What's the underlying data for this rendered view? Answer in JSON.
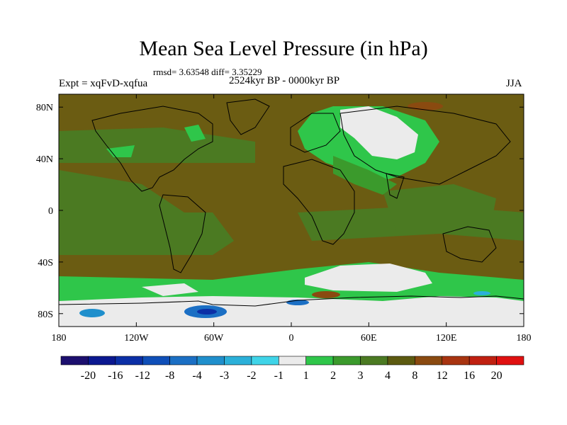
{
  "title": "Mean Sea Level Pressure (in hPa)",
  "stats": "rmsd= 3.63548 diff= 3.35229",
  "left_label": "Expt = xqFvD-xqfua",
  "center_label": "2524kyr BP - 0000kyr BP",
  "right_label": "JJA",
  "map_data": {
    "type": "contour-map",
    "variable": "Mean Sea Level Pressure difference",
    "units": "hPa",
    "lon_range": [
      -180,
      180
    ],
    "lat_range": [
      -90,
      90
    ],
    "x_tick_labels": [
      "180",
      "120W",
      "60W",
      "0",
      "60E",
      "120E",
      "180"
    ],
    "y_tick_labels": [
      "80N",
      "40N",
      "0",
      "40S",
      "80S"
    ],
    "colorbar": {
      "levels": [
        "-20",
        "-16",
        "-12",
        "-8",
        "-4",
        "-3",
        "-2",
        "-1",
        "1",
        "2",
        "3",
        "4",
        "8",
        "12",
        "16",
        "20"
      ],
      "colors": [
        "#1c0f6e",
        "#0b1890",
        "#0b2fa6",
        "#0f4fb8",
        "#1b6fc4",
        "#1f8fcc",
        "#2bb0d9",
        "#3fd4e8",
        "#ebebeb",
        "#2fc64a",
        "#3b9a2c",
        "#4b7a22",
        "#5c5a10",
        "#8a4a10",
        "#a83410",
        "#c02010",
        "#e01010"
      ]
    },
    "colors": {
      "background": "#6b5c12",
      "positive_low": "#3b9a2c",
      "positive_mid": "#4b7a22",
      "green": "#2fc64a",
      "near_zero": "#ebebeb",
      "negative": "#1b6fc4",
      "negative_strong": "#0b2fa6",
      "coast": "#000000"
    }
  }
}
